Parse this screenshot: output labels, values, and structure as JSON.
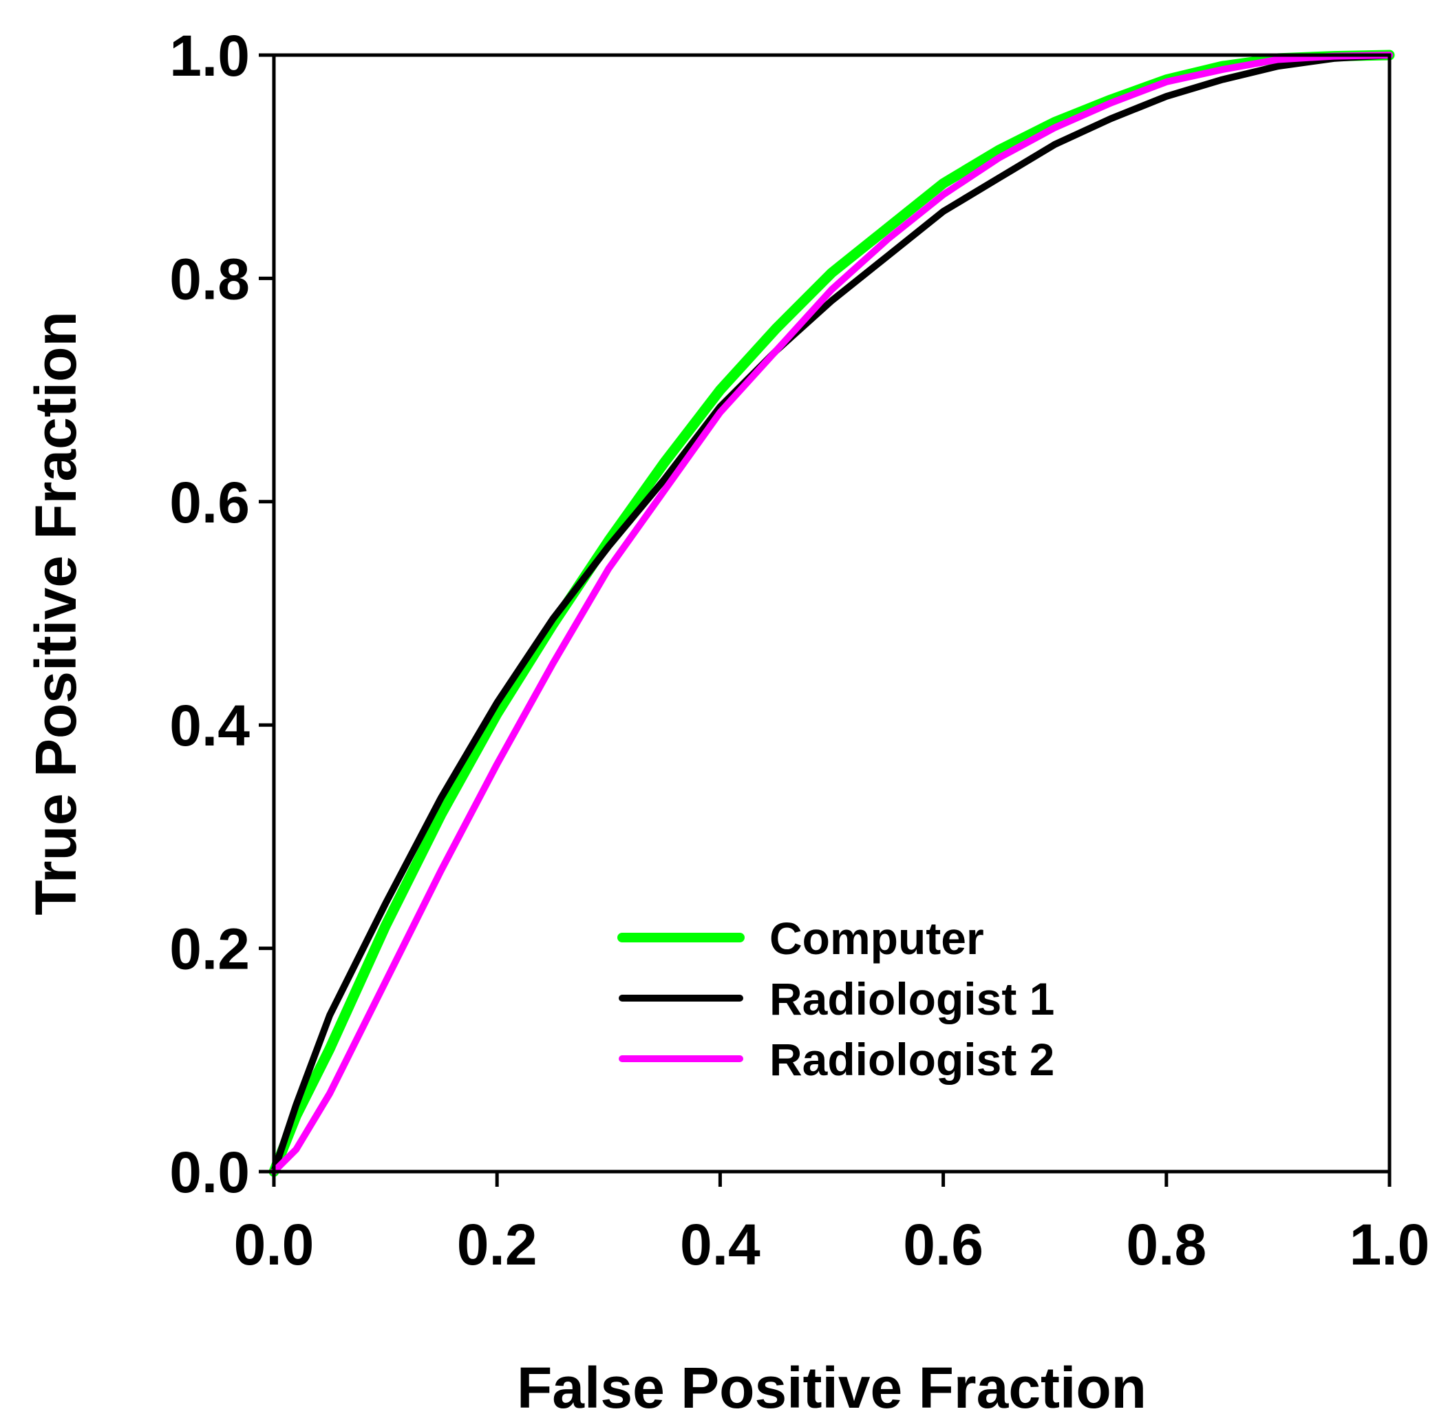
{
  "chart_data": {
    "type": "line",
    "title": "",
    "xlabel": "False Positive Fraction",
    "ylabel": "True Positive Fraction",
    "xlim": [
      0.0,
      1.0
    ],
    "ylim": [
      0.0,
      1.0
    ],
    "x_ticks": [
      "0.0",
      "0.2",
      "0.4",
      "0.6",
      "0.8",
      "1.0"
    ],
    "y_ticks": [
      "0.0",
      "0.2",
      "0.4",
      "0.6",
      "0.8",
      "1.0"
    ],
    "grid": false,
    "legend_position": "bottom-right",
    "series": [
      {
        "name": "Computer",
        "color": "#00ff00",
        "points": [
          [
            0.0,
            0.0
          ],
          [
            0.02,
            0.05
          ],
          [
            0.05,
            0.11
          ],
          [
            0.1,
            0.22
          ],
          [
            0.15,
            0.32
          ],
          [
            0.2,
            0.41
          ],
          [
            0.25,
            0.49
          ],
          [
            0.3,
            0.565
          ],
          [
            0.35,
            0.635
          ],
          [
            0.4,
            0.7
          ],
          [
            0.45,
            0.755
          ],
          [
            0.5,
            0.805
          ],
          [
            0.55,
            0.845
          ],
          [
            0.6,
            0.885
          ],
          [
            0.65,
            0.915
          ],
          [
            0.7,
            0.94
          ],
          [
            0.75,
            0.96
          ],
          [
            0.8,
            0.978
          ],
          [
            0.85,
            0.99
          ],
          [
            0.9,
            0.997
          ],
          [
            0.95,
            0.999
          ],
          [
            1.0,
            1.0
          ]
        ]
      },
      {
        "name": "Radiologist 1",
        "color": "#000000",
        "points": [
          [
            0.0,
            0.0
          ],
          [
            0.02,
            0.06
          ],
          [
            0.05,
            0.14
          ],
          [
            0.1,
            0.24
          ],
          [
            0.15,
            0.335
          ],
          [
            0.2,
            0.42
          ],
          [
            0.25,
            0.495
          ],
          [
            0.3,
            0.56
          ],
          [
            0.35,
            0.62
          ],
          [
            0.4,
            0.685
          ],
          [
            0.45,
            0.735
          ],
          [
            0.5,
            0.78
          ],
          [
            0.55,
            0.82
          ],
          [
            0.6,
            0.86
          ],
          [
            0.65,
            0.89
          ],
          [
            0.7,
            0.92
          ],
          [
            0.75,
            0.943
          ],
          [
            0.8,
            0.963
          ],
          [
            0.85,
            0.978
          ],
          [
            0.9,
            0.99
          ],
          [
            0.95,
            0.997
          ],
          [
            1.0,
            1.0
          ]
        ]
      },
      {
        "name": "Radiologist 2",
        "color": "#ff00ff",
        "points": [
          [
            0.0,
            0.0
          ],
          [
            0.02,
            0.02
          ],
          [
            0.05,
            0.07
          ],
          [
            0.1,
            0.17
          ],
          [
            0.15,
            0.27
          ],
          [
            0.2,
            0.365
          ],
          [
            0.25,
            0.455
          ],
          [
            0.3,
            0.54
          ],
          [
            0.35,
            0.61
          ],
          [
            0.4,
            0.68
          ],
          [
            0.45,
            0.735
          ],
          [
            0.5,
            0.79
          ],
          [
            0.55,
            0.835
          ],
          [
            0.6,
            0.875
          ],
          [
            0.65,
            0.908
          ],
          [
            0.7,
            0.935
          ],
          [
            0.75,
            0.957
          ],
          [
            0.8,
            0.976
          ],
          [
            0.85,
            0.987
          ],
          [
            0.9,
            0.996
          ],
          [
            0.95,
            0.999
          ],
          [
            1.0,
            1.0
          ]
        ]
      }
    ]
  }
}
